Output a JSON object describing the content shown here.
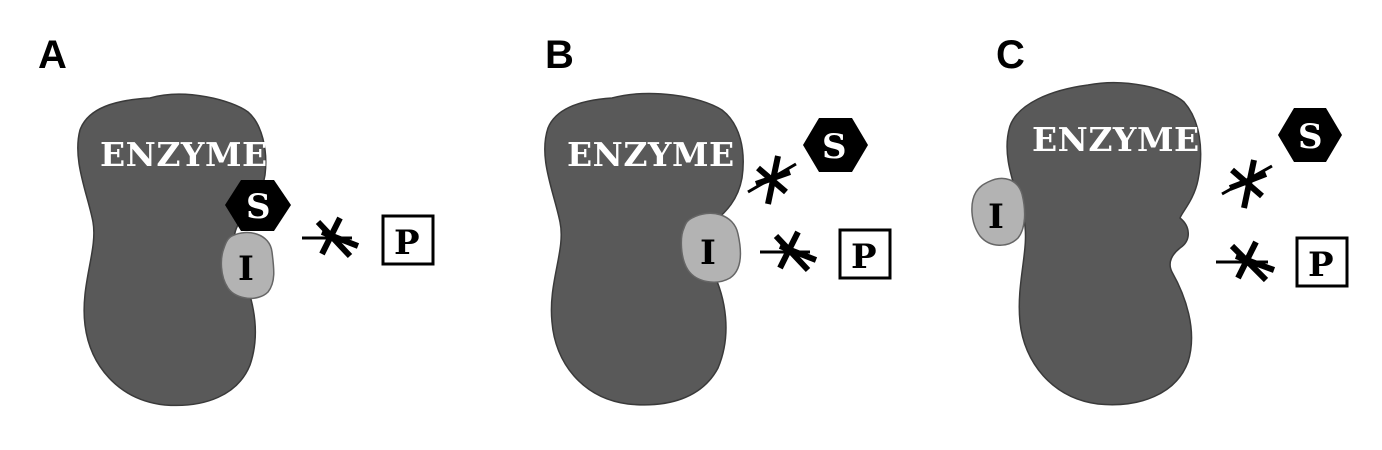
{
  "panels": [
    {
      "letter": "A",
      "enzyme_label": "ENZYME",
      "substrate_label": "S",
      "inhibitor_label": "I",
      "product_label": "P"
    },
    {
      "letter": "B",
      "enzyme_label": "ENZYME",
      "substrate_label": "S",
      "inhibitor_label": "I",
      "product_label": "P"
    },
    {
      "letter": "C",
      "enzyme_label": "ENZYME",
      "substrate_label": "S",
      "inhibitor_label": "I",
      "product_label": "P"
    }
  ],
  "colors": {
    "enzyme": "#595959",
    "inhibitor": "#b3b3b3",
    "substrate": "#000000",
    "product_border": "#000000",
    "text_on_dark": "#ffffff"
  },
  "icons": [
    "enzyme-shape",
    "substrate-hexagon",
    "inhibitor-blob",
    "product-box",
    "blocked-arrow-icon"
  ]
}
